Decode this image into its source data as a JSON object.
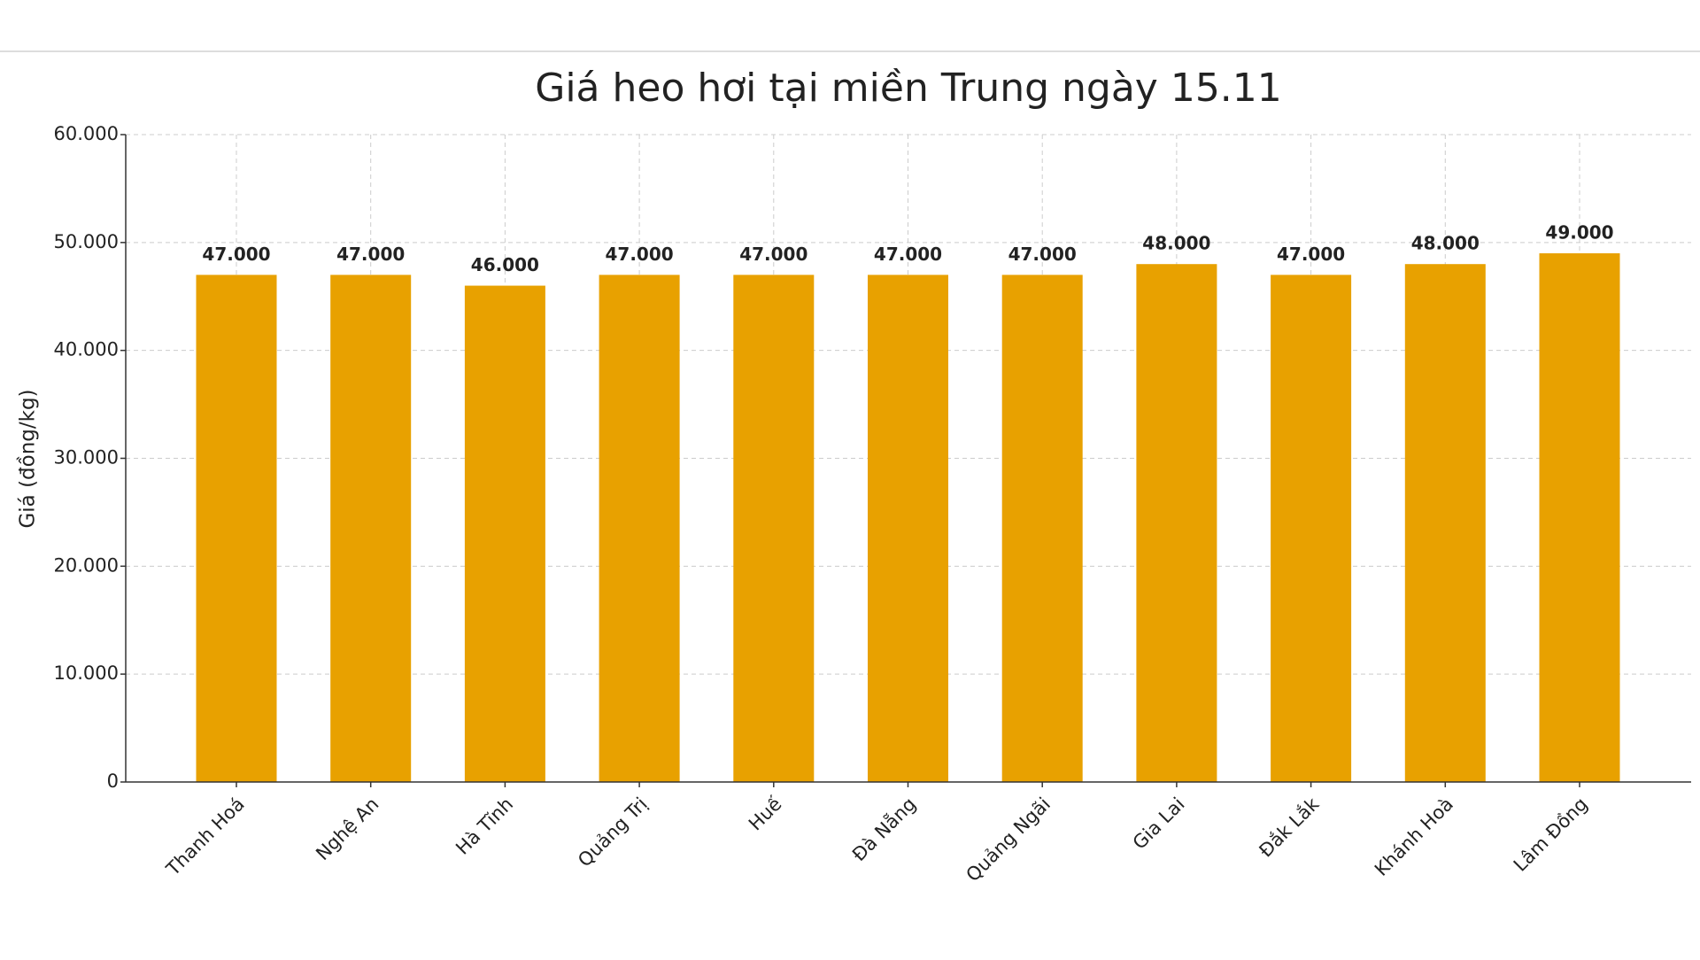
{
  "chart_data": {
    "type": "bar",
    "title": "Giá heo hơi tại miền Trung ngày 15.11",
    "ylabel": "Giá (đồng/kg)",
    "categories": [
      "Thanh Hoá",
      "Nghệ An",
      "Hà Tĩnh",
      "Quảng Trị",
      "Huế",
      "Đà Nẵng",
      "Quảng Ngãi",
      "Gia Lai",
      "Đắk Lắk",
      "Khánh Hoà",
      "Lâm Đồng"
    ],
    "values": [
      47000,
      47000,
      46000,
      47000,
      47000,
      47000,
      47000,
      48000,
      47000,
      48000,
      49000
    ],
    "value_labels": [
      "47.000",
      "47.000",
      "46.000",
      "47.000",
      "47.000",
      "47.000",
      "47.000",
      "48.000",
      "47.000",
      "48.000",
      "49.000"
    ],
    "color": "#e8a100",
    "ylim": [
      0,
      60000
    ],
    "yticks": [
      0,
      {
        "value": 10000,
        "label": "10.000"
      },
      {
        "value": 20000,
        "label": "20.000"
      },
      {
        "value": 30000,
        "label": "30.000"
      },
      {
        "value": 40000,
        "label": "40.000"
      },
      {
        "value": 50000,
        "label": "50.000"
      },
      {
        "value": 60000,
        "label": "60.000"
      }
    ],
    "grid": true
  }
}
